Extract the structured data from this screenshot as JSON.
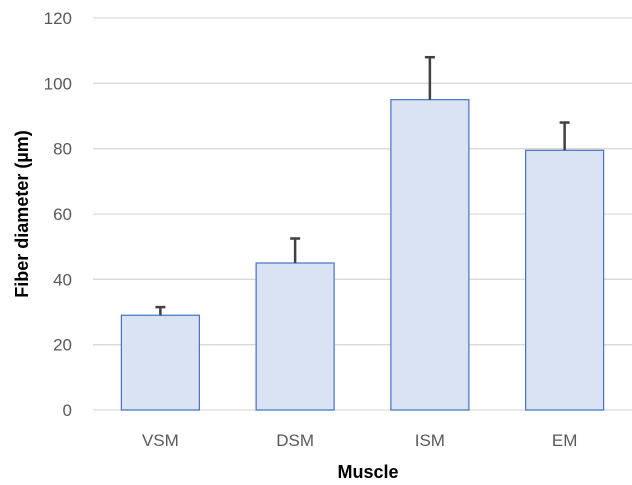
{
  "chart_data": {
    "type": "bar",
    "title": "",
    "xlabel": "Muscle",
    "ylabel": "Fiber diameter (µm)",
    "categories": [
      "VSM",
      "DSM",
      "ISM",
      "EM"
    ],
    "series": [
      {
        "values": [
          29,
          45,
          95,
          79.5
        ],
        "error_plus": [
          2.5,
          7.5,
          13,
          8.5
        ]
      }
    ],
    "ylim": [
      0,
      120
    ],
    "y_ticks": [
      "0",
      "20",
      "40",
      "60",
      "80",
      "100",
      "120"
    ],
    "grid": true,
    "legend": "none",
    "colors": {
      "bar_fill": "#dae3f3",
      "bar_stroke": "#4472c4",
      "error_bar": "#404040",
      "grid": "#d9d9d9",
      "tick_text": "#595959"
    }
  }
}
